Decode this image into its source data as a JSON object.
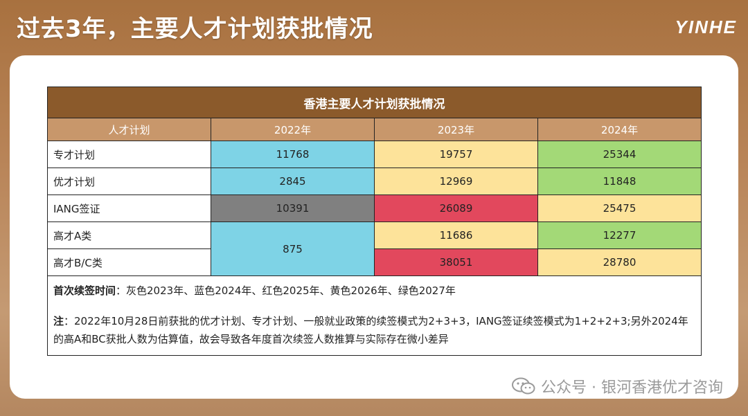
{
  "header": {
    "title": "过去3年，主要人才计划获批情况",
    "logo": "YINHE"
  },
  "table": {
    "title": "香港主要人才计划获批情况",
    "columns": [
      "人才计划",
      "2022年",
      "2023年",
      "2024年"
    ],
    "rows": [
      {
        "label": "专才计划",
        "values": [
          "11768",
          "19757",
          "25344"
        ]
      },
      {
        "label": "优才计划",
        "values": [
          "2845",
          "12969",
          "11848"
        ]
      },
      {
        "label": "IANG签证",
        "values": [
          "10391",
          "26089",
          "25475"
        ]
      },
      {
        "label": "高才A类",
        "values": [
          "875",
          "11686",
          "12277"
        ]
      },
      {
        "label": "高才B/C类",
        "values": [
          "",
          "38051",
          "28780"
        ]
      }
    ]
  },
  "notes": {
    "renewal_label": "首次续签时间",
    "renewal_text": "：灰色2023年、蓝色2024年、红色2025年、黄色2026年、绿色2027年",
    "note_label": "注",
    "note_text": "：2022年10月28日前获批的优才计划、专才计划、一般就业政策的续签模式为2+3+3，IANG签证续签模式为1+2+2+3;另外2024年的高A和BC获批人数为估算值，故会导致各年度首次续签人数推算与实际存在微小差异"
  },
  "watermark": {
    "text": "公众号 · 银河香港优才咨询",
    "icon": "wechat-icon"
  },
  "colors": {
    "gray_2023": "#808080",
    "blue_2024": "#7ed3e6",
    "red_2025": "#e2485d",
    "yellow_2026": "#fde39a",
    "green_2027": "#a3d977",
    "header_brown": "#8b5a2b"
  }
}
